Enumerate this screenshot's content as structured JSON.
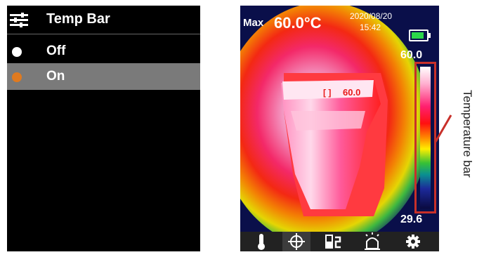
{
  "menu": {
    "title": "Temp Bar",
    "options": [
      {
        "label": "Off",
        "selected": false
      },
      {
        "label": "On",
        "selected": true
      }
    ]
  },
  "thermal_view": {
    "max_label": "Max",
    "max_value": "60.0°C",
    "date": "2020/08/20",
    "time": "15:42",
    "battery_level": 0.8,
    "bar_max": "60.0",
    "bar_min": "29.6",
    "spot_marker": "[ ]",
    "spot_value": "60.0",
    "colors": {
      "accent": "#c8302a",
      "battery": "#2bd64a",
      "selected_dot": "#e07a1f"
    },
    "toolbar": [
      "thermometer-icon",
      "crosshair-icon",
      "palette-icon",
      "alarm-icon",
      "gear-icon"
    ]
  },
  "annotation": {
    "label": "Temperature bar"
  }
}
